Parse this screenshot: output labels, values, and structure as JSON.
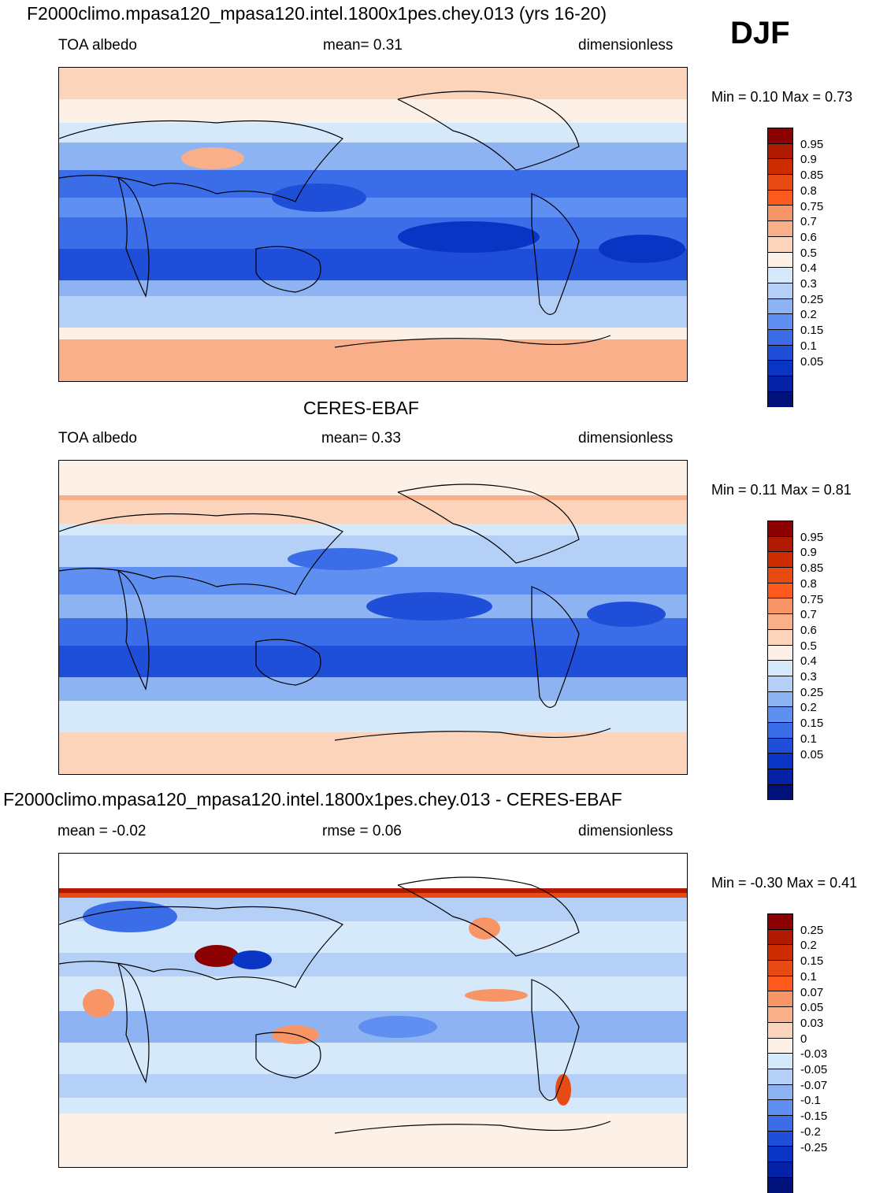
{
  "header": {
    "title": "F2000climo.mpasa120_mpasa120.intel.1800x1pes.chey.013 (yrs 16-20)",
    "season": "DJF"
  },
  "panels": [
    {
      "id": "model",
      "heading": "",
      "left_label": "TOA albedo",
      "center_label": "mean=   0.31",
      "right_label": "dimensionless",
      "minmax": "Min =   0.10 Max =   0.73",
      "colorbar": {
        "colors": [
          "#8b0000",
          "#b01a00",
          "#cc2c00",
          "#e84a14",
          "#ff5a1e",
          "#f79566",
          "#f9b08a",
          "#fbd4bb",
          "#fdf0e6",
          "#d6e9fb",
          "#b5d0f7",
          "#8eb3f2",
          "#5f8ff0",
          "#3b6de8",
          "#1f4fd8",
          "#0a35c4",
          "#0522a6",
          "#00127a"
        ],
        "labels": [
          "0.95",
          "0.9",
          "0.85",
          "0.8",
          "0.75",
          "0.7",
          "0.6",
          "0.5",
          "0.4",
          "0.3",
          "0.25",
          "0.2",
          "0.15",
          "0.1",
          "0.05"
        ]
      }
    },
    {
      "id": "obs",
      "heading": "CERES-EBAF",
      "left_label": "TOA albedo",
      "center_label": "mean=   0.33",
      "right_label": "dimensionless",
      "minmax": "Min =   0.11 Max =   0.81",
      "colorbar": {
        "colors": [
          "#8b0000",
          "#b01a00",
          "#cc2c00",
          "#e84a14",
          "#ff5a1e",
          "#f79566",
          "#f9b08a",
          "#fbd4bb",
          "#fdf0e6",
          "#d6e9fb",
          "#b5d0f7",
          "#8eb3f2",
          "#5f8ff0",
          "#3b6de8",
          "#1f4fd8",
          "#0a35c4",
          "#0522a6",
          "#00127a"
        ],
        "labels": [
          "0.95",
          "0.9",
          "0.85",
          "0.8",
          "0.75",
          "0.7",
          "0.6",
          "0.5",
          "0.4",
          "0.3",
          "0.25",
          "0.2",
          "0.15",
          "0.1",
          "0.05"
        ]
      }
    },
    {
      "id": "diff",
      "heading": "F2000climo.mpasa120_mpasa120.intel.1800x1pes.chey.013 - CERES-EBAF",
      "left_label": "mean =  -0.02",
      "center_label": "rmse =   0.06",
      "right_label": "dimensionless",
      "minmax": "Min =  -0.30 Max =   0.41",
      "colorbar": {
        "colors": [
          "#8b0000",
          "#b01a00",
          "#cc2c00",
          "#e84a14",
          "#ff5a1e",
          "#f79566",
          "#f9b08a",
          "#fbd4bb",
          "#fdf0e6",
          "#d6e9fb",
          "#b5d0f7",
          "#8eb3f2",
          "#5f8ff0",
          "#3b6de8",
          "#1f4fd8",
          "#0a35c4",
          "#0522a6",
          "#00127a"
        ],
        "labels": [
          "0.25",
          "0.2",
          "0.15",
          "0.1",
          "0.07",
          "0.05",
          "0.03",
          "0",
          "-0.03",
          "-0.05",
          "-0.07",
          "-0.1",
          "-0.15",
          "-0.2",
          "-0.25"
        ]
      }
    }
  ]
}
